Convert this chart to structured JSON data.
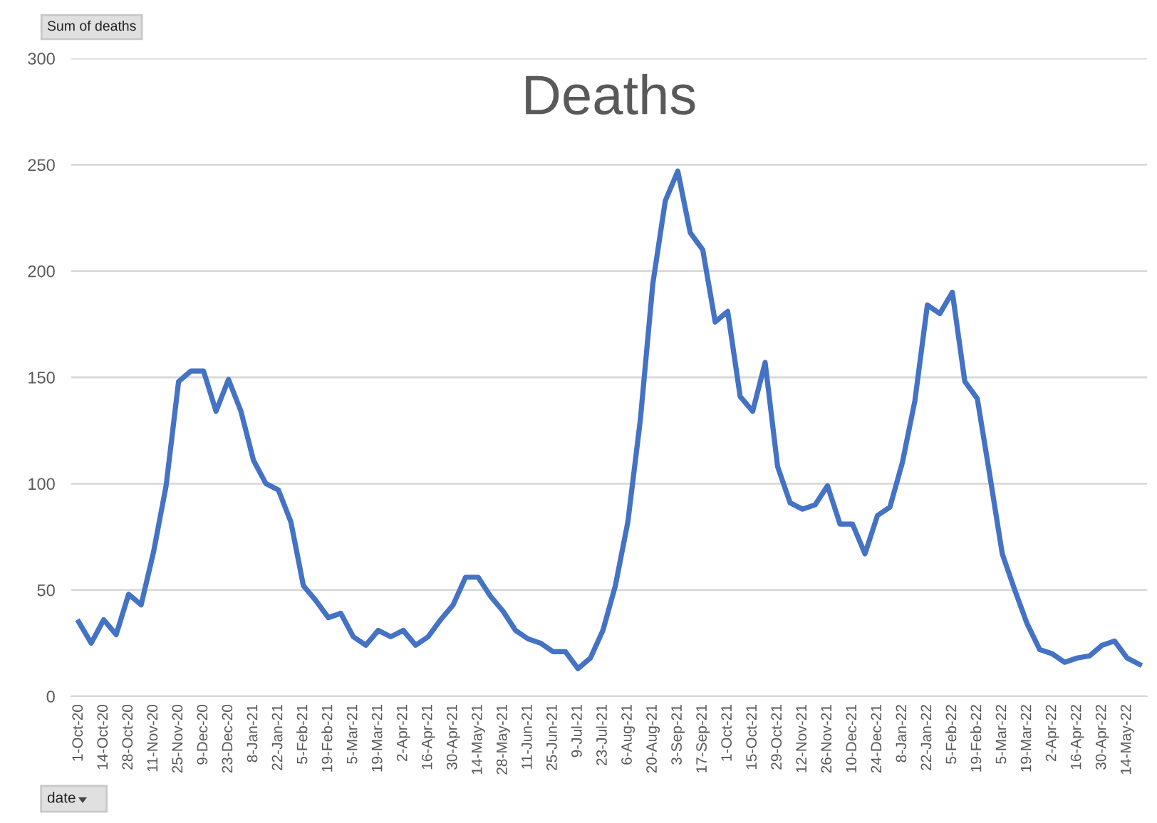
{
  "chart_data": {
    "type": "line",
    "title": "Deaths",
    "ylabel": "Sum of deaths",
    "xlabel": "date",
    "categories": [
      "1-Oct-20",
      null,
      "14-Oct-20",
      null,
      "28-Oct-20",
      null,
      "11-Nov-20",
      null,
      "25-Nov-20",
      null,
      "9-Dec-20",
      null,
      "23-Dec-20",
      null,
      "8-Jan-21",
      null,
      "22-Jan-21",
      null,
      "5-Feb-21",
      null,
      "19-Feb-21",
      null,
      "5-Mar-21",
      null,
      "19-Mar-21",
      null,
      "2-Apr-21",
      null,
      "16-Apr-21",
      null,
      "30-Apr-21",
      null,
      "14-May-21",
      null,
      "28-May-21",
      null,
      "11-Jun-21",
      null,
      "25-Jun-21",
      null,
      "9-Jul-21",
      null,
      "23-Jul-21",
      null,
      "6-Aug-21",
      null,
      "20-Aug-21",
      null,
      "3-Sep-21",
      null,
      "17-Sep-21",
      null,
      "1-Oct-21",
      null,
      "15-Oct-21",
      null,
      "29-Oct-21",
      null,
      "12-Nov-21",
      null,
      "26-Nov-21",
      null,
      "10-Dec-21",
      null,
      "24-Dec-21",
      null,
      "8-Jan-22",
      null,
      "22-Jan-22",
      null,
      "5-Feb-22",
      null,
      "19-Feb-22",
      null,
      "5-Mar-22",
      null,
      "19-Mar-22",
      null,
      "2-Apr-22",
      null,
      "16-Apr-22",
      null,
      "30-Apr-22",
      null,
      "14-May-22",
      null
    ],
    "series": [
      {
        "color": "#4472c4",
        "values": [
          35,
          25,
          36,
          29,
          48,
          43,
          68,
          99,
          148,
          153,
          153,
          134,
          149,
          134,
          111,
          100,
          97,
          82,
          52,
          45,
          37,
          39,
          28,
          24,
          31,
          28,
          31,
          24,
          28,
          36,
          43,
          56,
          56,
          47,
          40,
          31,
          27,
          25,
          21,
          21,
          13,
          18,
          31,
          52,
          82,
          130,
          194,
          233,
          247,
          218,
          210,
          176,
          181,
          141,
          134,
          157,
          108,
          91,
          88,
          90,
          99,
          81,
          81,
          67,
          85,
          89,
          110,
          139,
          184,
          180,
          190,
          148,
          140,
          104,
          67,
          50,
          34,
          22,
          20,
          16,
          18,
          19,
          24,
          26,
          18,
          15
        ]
      }
    ],
    "ylim": [
      0,
      300
    ],
    "yticks": [
      0,
      50,
      100,
      150,
      200,
      250,
      300
    ],
    "grid": "y",
    "marker": "none",
    "line_style": "solid"
  }
}
